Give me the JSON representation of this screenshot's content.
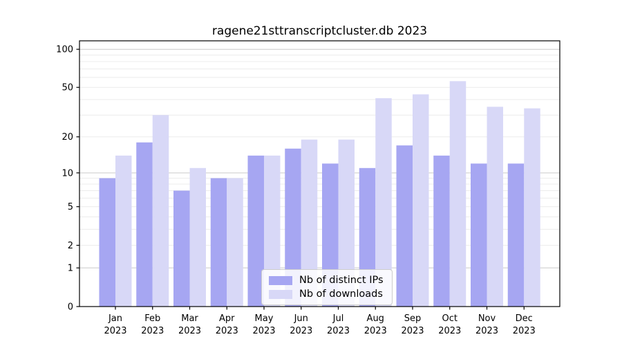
{
  "chart_data": {
    "type": "bar",
    "title": "ragene21sttranscriptcluster.db 2023",
    "scale": "log1p",
    "categories": [
      "Jan 2023",
      "Feb 2023",
      "Mar 2023",
      "Apr 2023",
      "May 2023",
      "Jun 2023",
      "Jul 2023",
      "Aug 2023",
      "Sep 2023",
      "Oct 2023",
      "Nov 2023",
      "Dec 2023"
    ],
    "series": [
      {
        "name": "Nb of distinct IPs",
        "color": "#a6a6f2",
        "values": [
          9,
          18,
          7,
          9,
          14,
          16,
          12,
          11,
          17,
          14,
          12,
          12
        ]
      },
      {
        "name": "Nb of downloads",
        "color": "#d8d8f7",
        "values": [
          14,
          30,
          11,
          9,
          14,
          19,
          19,
          41,
          44,
          56,
          35,
          34
        ]
      }
    ],
    "yticks": [
      0,
      1,
      2,
      5,
      10,
      20,
      50,
      100
    ],
    "grid_values": [
      1,
      2,
      3,
      4,
      5,
      6,
      7,
      8,
      9,
      10,
      20,
      30,
      40,
      50,
      60,
      70,
      80,
      90,
      100
    ],
    "major_grid_values": [
      1,
      10,
      100
    ],
    "ylim": [
      0,
      120
    ],
    "grid": true,
    "legend_position": "lower center inside",
    "xlabel": "",
    "ylabel": ""
  },
  "colors": {
    "grid_minor": "#ececec",
    "grid_major": "#c9c9c9",
    "axis": "#000000",
    "legend_border": "#cccccc"
  }
}
